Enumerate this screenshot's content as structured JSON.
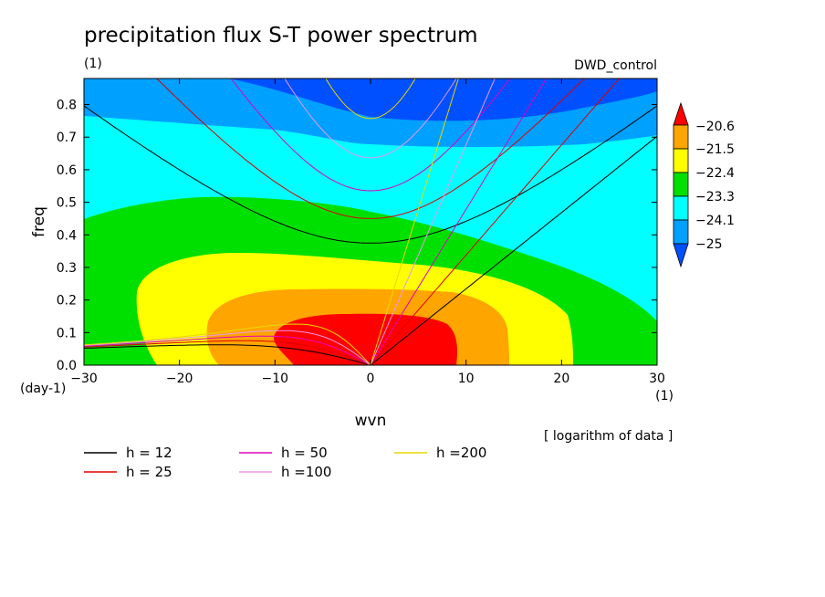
{
  "chart_data": {
    "type": "heatmap",
    "title": "precipitation flux S-T power spectrum",
    "subtitle_left": "(1)",
    "subtitle_right": "DWD_control",
    "xlabel": "wvn",
    "ylabel": "freq",
    "x_unit": "(1)",
    "y_unit": "(day-1)",
    "xlim": [
      -30,
      30
    ],
    "ylim": [
      0,
      0.88
    ],
    "x_ticks": [
      -30,
      -20,
      -10,
      0,
      10,
      20,
      30
    ],
    "x_tick_labels": [
      "−30",
      "−20",
      "−10",
      "0",
      "10",
      "20",
      "30"
    ],
    "y_ticks": [
      0,
      0.1,
      0.2,
      0.3,
      0.4,
      0.5,
      0.6,
      0.7,
      0.8
    ],
    "y_tick_labels": [
      "0.0",
      "0.1",
      "0.2",
      "0.3",
      "0.4",
      "0.5",
      "0.6",
      "0.7",
      "0.8"
    ],
    "colorbar": {
      "levels": [
        "−20.6",
        "−21.5",
        "−22.4",
        "−23.3",
        "−24.1",
        "−25"
      ],
      "colors": [
        "#ff0000",
        "#ffa500",
        "#ffff00",
        "#00e000",
        "#00ffff",
        "#00a0ff",
        "#0050ff"
      ],
      "note": "[ logarithm of data ]"
    },
    "filled_regions": [
      {
        "level": "< −25",
        "color": "#0050ff",
        "desc": "top band, freq above ~0.75 near wvn 0"
      },
      {
        "level": "−25 to −24.1",
        "color": "#00a0ff"
      },
      {
        "level": "−24.1 to −23.3",
        "color": "#00ffff"
      },
      {
        "level": "−23.3 to −22.4",
        "color": "#00e000"
      },
      {
        "level": "−22.4 to −21.5",
        "color": "#ffff00"
      },
      {
        "level": "−21.5 to −20.6",
        "color": "#ffa500"
      },
      {
        "level": "> −20.6",
        "color": "#ff0000",
        "desc": "peak near wvn 0 to 9, freq 0 to 0.15"
      }
    ],
    "dispersion_curves": [
      {
        "label": "h = 12",
        "equivalent_depth": 12,
        "color": "#000000",
        "kelvin_slope": 0.0261
      },
      {
        "label": "h = 25",
        "equivalent_depth": 25,
        "color": "#dd0000",
        "kelvin_slope": 0.0377
      },
      {
        "label": "h = 50",
        "equivalent_depth": 50,
        "color": "#e000c0",
        "kelvin_slope": 0.0533
      },
      {
        "label": "h =100",
        "equivalent_depth": 100,
        "color": "#e898e8",
        "kelvin_slope": 0.0754
      },
      {
        "label": "h =200",
        "equivalent_depth": 200,
        "color": "#e8d800",
        "kelvin_slope": 0.1066
      }
    ],
    "legend_position": "bottom-left"
  }
}
